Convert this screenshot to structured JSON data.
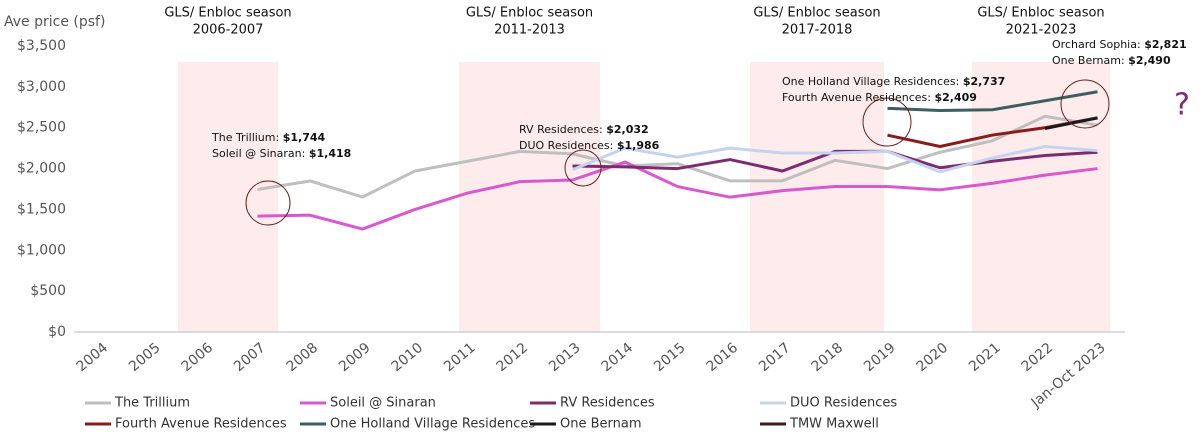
{
  "chart_data": {
    "type": "line",
    "y_label": "Ave price (psf)",
    "categories": [
      "2004",
      "2005",
      "2006",
      "2007",
      "2008",
      "2009",
      "2010",
      "2011",
      "2012",
      "2013",
      "2014",
      "2015",
      "2016",
      "2017",
      "2018",
      "2019",
      "2020",
      "2021",
      "2022",
      "Jan-Oct 2023"
    ],
    "ylim": [
      0,
      3500
    ],
    "yticks": [
      {
        "value": 0,
        "label": "$0"
      },
      {
        "value": 500,
        "label": "$500"
      },
      {
        "value": 1000,
        "label": "$1,000"
      },
      {
        "value": 1500,
        "label": "$1,500"
      },
      {
        "value": 2000,
        "label": "$2,000"
      },
      {
        "value": 2500,
        "label": "$2,500"
      },
      {
        "value": 3000,
        "label": "$3,000"
      },
      {
        "value": 3500,
        "label": "$3,500"
      }
    ],
    "series": [
      {
        "name": "The Trillium",
        "color": "#bfbfbf",
        "values": [
          null,
          null,
          null,
          1744,
          1848,
          1652,
          1970,
          2090,
          2210,
          2180,
          2030,
          2060,
          1850,
          1850,
          2100,
          2000,
          2200,
          2340,
          2640,
          2530
        ]
      },
      {
        "name": "Soleil @ Sinaran",
        "color": "#d957cf",
        "values": [
          null,
          null,
          null,
          1418,
          1430,
          1260,
          1500,
          1700,
          1840,
          1860,
          2080,
          1780,
          1650,
          1730,
          1780,
          1780,
          1740,
          1820,
          1920,
          2000
        ]
      },
      {
        "name": "RV Residences",
        "color": "#7b2c6f",
        "values": [
          null,
          null,
          null,
          null,
          null,
          null,
          null,
          null,
          null,
          2032,
          2020,
          2000,
          2110,
          1970,
          2210,
          2210,
          2010,
          2090,
          2160,
          2200
        ]
      },
      {
        "name": "DUO Residences",
        "color": "#c5d3ef",
        "values": [
          null,
          null,
          null,
          null,
          null,
          null,
          null,
          null,
          null,
          1986,
          2250,
          2140,
          2250,
          2190,
          2190,
          2210,
          1960,
          2130,
          2270,
          2220
        ]
      },
      {
        "name": "Fourth Avenue Residences",
        "color": "#8b1a1a",
        "values": [
          null,
          null,
          null,
          null,
          null,
          null,
          null,
          null,
          null,
          null,
          null,
          null,
          null,
          null,
          null,
          2409,
          2270,
          2410,
          2500,
          2620
        ]
      },
      {
        "name": "One Holland Village Residences",
        "color": "#3d5f5f",
        "values": [
          null,
          null,
          null,
          null,
          null,
          null,
          null,
          null,
          null,
          null,
          null,
          null,
          null,
          null,
          null,
          2737,
          2710,
          2720,
          2830,
          2940
        ]
      },
      {
        "name": "One Bernam",
        "color": "#1a1a1a",
        "values": [
          null,
          null,
          null,
          null,
          null,
          null,
          null,
          null,
          null,
          null,
          null,
          null,
          null,
          null,
          null,
          null,
          null,
          null,
          2490,
          2620
        ]
      },
      {
        "name": "TMW Maxwell",
        "color": "#3a1a1a",
        "values": [
          null,
          null,
          null,
          null,
          null,
          null,
          null,
          null,
          null,
          null,
          null,
          null,
          null,
          null,
          null,
          null,
          null,
          null,
          null,
          null
        ]
      }
    ],
    "seasons": [
      {
        "label": "GLS/ Enbloc season",
        "period": "2006-2007"
      },
      {
        "label": "GLS/ Enbloc season",
        "period": "2011-2013"
      },
      {
        "label": "GLS/ Enbloc season",
        "period": "2017-2018"
      },
      {
        "label": "GLS/ Enbloc season",
        "period": "2021-2023"
      }
    ],
    "annotations": [
      [
        {
          "name": "The Trillium:",
          "value": "$1,744"
        },
        {
          "name": "Soleil @ Sinaran:",
          "value": "$1,418"
        }
      ],
      [
        {
          "name": "RV Residences:",
          "value": "$2,032"
        },
        {
          "name": "DUO Residences:",
          "value": "$1,986"
        }
      ],
      [
        {
          "name": "One Holland Village Residences:",
          "value": "$2,737"
        },
        {
          "name": "Fourth Avenue Residences:",
          "value": "$2,409"
        }
      ],
      [
        {
          "name": "Orchard Sophia:",
          "value": "$2,821"
        },
        {
          "name": "One Bernam:",
          "value": "$2,490"
        }
      ]
    ],
    "question_mark": "?"
  }
}
